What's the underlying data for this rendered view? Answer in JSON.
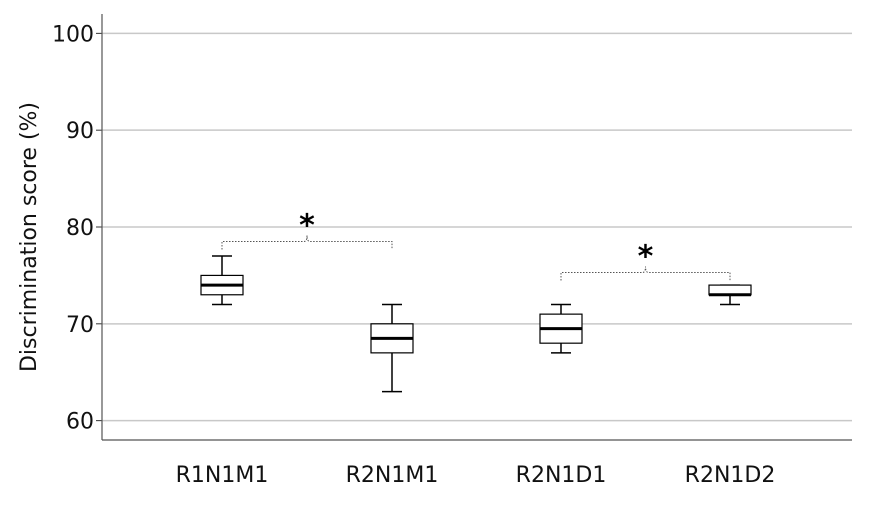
{
  "chart_data": {
    "type": "box",
    "title": "",
    "xlabel": "",
    "ylabel": "Discrimination score  (%)",
    "ylim": [
      58,
      102
    ],
    "yticks": [
      60,
      70,
      80,
      90,
      100
    ],
    "grid": "horizontal",
    "categories": [
      "R1N1M1",
      "R2N1M1",
      "R2N1D1",
      "R2N1D2"
    ],
    "boxes": [
      {
        "min": 72,
        "q1": 73,
        "median": 74,
        "q3": 75,
        "max": 77
      },
      {
        "min": 63,
        "q1": 67,
        "median": 68.5,
        "q3": 70,
        "max": 72
      },
      {
        "min": 67,
        "q1": 68,
        "median": 69.5,
        "q3": 71,
        "max": 72
      },
      {
        "min": 72,
        "q1": 73,
        "median": 73,
        "q3": 74,
        "max": 74
      }
    ],
    "annotations": [
      {
        "from": 0,
        "to": 1,
        "y": 78.5,
        "label": "*"
      },
      {
        "from": 2,
        "to": 3,
        "y": 75.3,
        "label": "*"
      }
    ]
  }
}
